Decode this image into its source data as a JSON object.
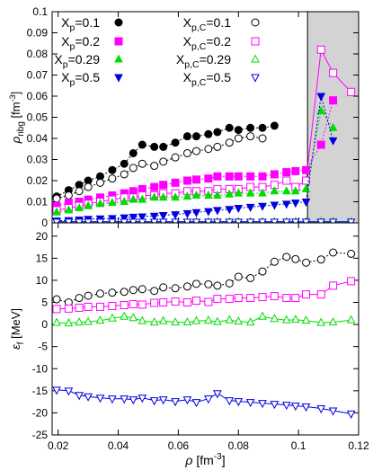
{
  "chart_data": [
    {
      "type": "line",
      "panel": "top",
      "ylabel": "ρ_nbg [fm^-3]",
      "ylim": [
        0,
        0.1
      ],
      "xlim": [
        0.018,
        0.12
      ],
      "yticks": [
        "0",
        "0.01",
        "0.02",
        "0.03",
        "0.04",
        "0.05",
        "0.06",
        "0.07",
        "0.08",
        "0.09",
        "0.1"
      ],
      "yticks_values": [
        0,
        0.01,
        0.02,
        0.03,
        0.04,
        0.05,
        0.06,
        0.07,
        0.08,
        0.09,
        0.1
      ],
      "shaded_region": [
        0.103,
        0.12
      ],
      "legend_placement": "top-left",
      "series": [
        {
          "name": "X_p=0.1",
          "color": "#000000",
          "marker": "circle-filled",
          "dash": true,
          "x": [
            0.0195,
            0.0235,
            0.027,
            0.03,
            0.034,
            0.038,
            0.042,
            0.045,
            0.048,
            0.052,
            0.055,
            0.059,
            0.063,
            0.066,
            0.07,
            0.073,
            0.077,
            0.08,
            0.084,
            0.088,
            0.092
          ],
          "y": [
            0.0125,
            0.0155,
            0.018,
            0.02,
            0.022,
            0.025,
            0.028,
            0.033,
            0.037,
            0.036,
            0.036,
            0.038,
            0.041,
            0.041,
            0.042,
            0.043,
            0.045,
            0.044,
            0.045,
            0.045,
            0.046
          ]
        },
        {
          "name": "X_p,C=0.1",
          "color": "#000000",
          "marker": "circle-open",
          "dash": true,
          "x": [
            0.0195,
            0.0235,
            0.027,
            0.03,
            0.034,
            0.038,
            0.042,
            0.045,
            0.048,
            0.052,
            0.055,
            0.059,
            0.063,
            0.066,
            0.07,
            0.073,
            0.077,
            0.08,
            0.084,
            0.088
          ],
          "y": [
            0.0115,
            0.013,
            0.015,
            0.017,
            0.019,
            0.021,
            0.023,
            0.026,
            0.028,
            0.027,
            0.029,
            0.031,
            0.033,
            0.034,
            0.035,
            0.036,
            0.038,
            0.04,
            0.041,
            0.04
          ]
        },
        {
          "name": "X_p=0.2",
          "color": "#ff00ff",
          "marker": "square-filled",
          "dash": true,
          "x": [
            0.0195,
            0.0235,
            0.027,
            0.03,
            0.034,
            0.038,
            0.042,
            0.045,
            0.048,
            0.052,
            0.055,
            0.059,
            0.063,
            0.066,
            0.07,
            0.073,
            0.077,
            0.08,
            0.084,
            0.088,
            0.092,
            0.096,
            0.099,
            0.1025,
            0.1075,
            0.1115
          ],
          "y": [
            0.008,
            0.0095,
            0.01,
            0.011,
            0.012,
            0.013,
            0.014,
            0.015,
            0.016,
            0.017,
            0.018,
            0.019,
            0.02,
            0.0205,
            0.021,
            0.022,
            0.022,
            0.022,
            0.022,
            0.022,
            0.023,
            0.024,
            0.0245,
            0.025,
            0.037,
            0.058
          ]
        },
        {
          "name": "X_p,C=0.2",
          "color": "#ff00ff",
          "marker": "square-open",
          "dash": false,
          "x": [
            0.0195,
            0.0235,
            0.027,
            0.03,
            0.034,
            0.038,
            0.042,
            0.045,
            0.048,
            0.052,
            0.055,
            0.059,
            0.063,
            0.066,
            0.07,
            0.073,
            0.077,
            0.08,
            0.084,
            0.088,
            0.092,
            0.096,
            0.099,
            0.1025,
            0.1075,
            0.1115,
            0.1175
          ],
          "y": [
            0.006,
            0.007,
            0.008,
            0.009,
            0.01,
            0.011,
            0.012,
            0.012,
            0.013,
            0.013,
            0.014,
            0.014,
            0.015,
            0.015,
            0.015,
            0.016,
            0.016,
            0.016,
            0.017,
            0.017,
            0.018,
            0.02,
            0.017,
            0.02,
            0.082,
            0.071,
            0.062
          ]
        },
        {
          "name": "X_p=0.29",
          "color": "#00dd00",
          "marker": "triangle-up-filled",
          "dash": true,
          "x": [
            0.0195,
            0.0235,
            0.027,
            0.03,
            0.034,
            0.038,
            0.042,
            0.045,
            0.048,
            0.052,
            0.055,
            0.059,
            0.063,
            0.066,
            0.07,
            0.073,
            0.077,
            0.08,
            0.084,
            0.088,
            0.092,
            0.096,
            0.099,
            0.1025,
            0.1075,
            0.1115
          ],
          "y": [
            0.005,
            0.006,
            0.007,
            0.008,
            0.009,
            0.0095,
            0.01,
            0.011,
            0.011,
            0.012,
            0.012,
            0.012,
            0.0125,
            0.013,
            0.013,
            0.013,
            0.0135,
            0.014,
            0.014,
            0.014,
            0.015,
            0.015,
            0.015,
            0.016,
            0.053,
            0.045
          ]
        },
        {
          "name": "X_p,C=0.29",
          "color": "#00dd00",
          "marker": "triangle-up-open",
          "dash": false,
          "x": [
            0.0195,
            0.0235,
            0.027,
            0.03,
            0.034,
            0.038,
            0.042,
            0.045,
            0.048,
            0.052,
            0.055,
            0.059,
            0.063,
            0.066,
            0.07,
            0.073,
            0.077,
            0.08,
            0.084,
            0.088,
            0.092,
            0.096,
            0.099,
            0.1025,
            0.1075,
            0.1115,
            0.1175
          ],
          "y": [
            0.0005,
            0.0005,
            0.0005,
            0.0005,
            0.0005,
            0.0005,
            0.0005,
            0.0005,
            0.0005,
            0.0005,
            0.0005,
            0.0005,
            0.0005,
            0.0005,
            0.0005,
            0.0005,
            0.0005,
            0.0005,
            0.0005,
            0.0005,
            0.0005,
            0.0005,
            0.0005,
            0.0005,
            0.0005,
            0.0005,
            0.0005
          ]
        },
        {
          "name": "X_p=0.5",
          "color": "#0000dd",
          "marker": "triangle-down-filled",
          "dash": true,
          "x": [
            0.0195,
            0.0235,
            0.027,
            0.03,
            0.034,
            0.038,
            0.042,
            0.045,
            0.048,
            0.052,
            0.055,
            0.059,
            0.063,
            0.066,
            0.07,
            0.073,
            0.077,
            0.08,
            0.084,
            0.088,
            0.092,
            0.096,
            0.099,
            0.1025,
            0.1075,
            0.1115
          ],
          "y": [
            0.001,
            0.0012,
            0.0015,
            0.0018,
            0.002,
            0.0022,
            0.0025,
            0.0028,
            0.003,
            0.0033,
            0.0036,
            0.004,
            0.0045,
            0.005,
            0.0055,
            0.006,
            0.0065,
            0.007,
            0.0075,
            0.008,
            0.0085,
            0.009,
            0.0095,
            0.01,
            0.06,
            0.039
          ]
        },
        {
          "name": "X_p,C=0.5",
          "color": "#0000dd",
          "marker": "triangle-down-open",
          "dash": false,
          "x": [
            0.0195,
            0.0235,
            0.027,
            0.03,
            0.034,
            0.038,
            0.042,
            0.045,
            0.048,
            0.052,
            0.055,
            0.059,
            0.063,
            0.066,
            0.07,
            0.073,
            0.077,
            0.08,
            0.084,
            0.088,
            0.092,
            0.096,
            0.099,
            0.1025,
            0.1075,
            0.1115,
            0.1175
          ],
          "y": [
            0.0005,
            0.0005,
            0.0005,
            0.0005,
            0.0005,
            0.0005,
            0.0005,
            0.0005,
            0.0005,
            0.0005,
            0.0005,
            0.0005,
            0.0005,
            0.0005,
            0.0005,
            0.0005,
            0.0005,
            0.0005,
            0.0005,
            0.0005,
            0.0005,
            0.0005,
            0.0005,
            0.0005,
            0.0005,
            0.0005,
            0.0005
          ]
        }
      ]
    },
    {
      "type": "line",
      "panel": "bottom",
      "ylabel": "ε_f [MeV]",
      "xlabel": "ρ [fm^-3]",
      "ylim": [
        -25,
        23
      ],
      "xlim": [
        0.018,
        0.12
      ],
      "yticks": [
        "-25",
        "-20",
        "-15",
        "-10",
        "-5",
        "0",
        "5",
        "10",
        "15",
        "20"
      ],
      "yticks_values": [
        -25,
        -20,
        -15,
        -10,
        -5,
        0,
        5,
        10,
        15,
        20
      ],
      "xticks": [
        "0.02",
        "0.04",
        "0.06",
        "0.08",
        "0.1",
        "0.12"
      ],
      "xticks_values": [
        0.02,
        0.04,
        0.06,
        0.08,
        0.1,
        0.12
      ],
      "series": [
        {
          "name": "X_p,C=0.1",
          "color": "#000000",
          "marker": "circle-open",
          "dash": true,
          "x": [
            0.0195,
            0.0235,
            0.027,
            0.03,
            0.034,
            0.038,
            0.042,
            0.045,
            0.048,
            0.052,
            0.055,
            0.059,
            0.063,
            0.066,
            0.07,
            0.073,
            0.077,
            0.08,
            0.084,
            0.088,
            0.092,
            0.096,
            0.099,
            0.1025,
            0.1075,
            0.1115,
            0.1175
          ],
          "y": [
            5.7,
            5.0,
            6.0,
            6.5,
            7.0,
            7.2,
            7.4,
            7.8,
            8.0,
            7.6,
            8.4,
            8.2,
            8.6,
            9.2,
            9.1,
            8.8,
            9.3,
            10.8,
            10.5,
            12.0,
            14.2,
            15.3,
            14.8,
            14.0,
            14.7,
            16.3,
            16.0
          ]
        },
        {
          "name": "X_p,C=0.2",
          "color": "#ff00ff",
          "marker": "square-open",
          "dash": false,
          "x": [
            0.0195,
            0.0235,
            0.027,
            0.03,
            0.034,
            0.038,
            0.042,
            0.045,
            0.048,
            0.052,
            0.055,
            0.059,
            0.063,
            0.066,
            0.07,
            0.073,
            0.077,
            0.08,
            0.084,
            0.088,
            0.092,
            0.096,
            0.099,
            0.1025,
            0.1075,
            0.1115,
            0.1175
          ],
          "y": [
            3.5,
            3.6,
            3.8,
            4.0,
            4.0,
            4.2,
            4.4,
            4.6,
            4.5,
            4.9,
            5.0,
            5.2,
            5.0,
            5.4,
            5.1,
            5.8,
            5.8,
            6.0,
            6.0,
            6.2,
            6.4,
            6.0,
            6.0,
            6.8,
            6.8,
            8.8,
            9.8
          ]
        },
        {
          "name": "X_p,C=0.29",
          "color": "#00dd00",
          "marker": "triangle-up-open",
          "dash": false,
          "x": [
            0.0195,
            0.0235,
            0.027,
            0.03,
            0.034,
            0.038,
            0.042,
            0.045,
            0.048,
            0.052,
            0.055,
            0.059,
            0.063,
            0.066,
            0.07,
            0.073,
            0.077,
            0.08,
            0.084,
            0.088,
            0.092,
            0.096,
            0.099,
            0.1025,
            0.1075,
            0.1115,
            0.1175
          ],
          "y": [
            0.4,
            0.3,
            0.5,
            0.6,
            0.9,
            1.4,
            1.8,
            1.5,
            0.8,
            0.5,
            0.8,
            0.5,
            0.5,
            0.8,
            0.9,
            0.6,
            1.0,
            0.7,
            0.5,
            1.8,
            1.3,
            1.0,
            1.1,
            0.9,
            0.4,
            0.5,
            1.0
          ]
        },
        {
          "name": "X_p,C=0.5",
          "color": "#0000dd",
          "marker": "triangle-down-open",
          "dash": false,
          "x": [
            0.0195,
            0.0235,
            0.027,
            0.03,
            0.034,
            0.038,
            0.042,
            0.045,
            0.048,
            0.052,
            0.055,
            0.059,
            0.063,
            0.066,
            0.07,
            0.073,
            0.077,
            0.08,
            0.084,
            0.088,
            0.092,
            0.096,
            0.099,
            0.1025,
            0.1075,
            0.1115,
            0.1175
          ],
          "y": [
            -14.8,
            -15.0,
            -16.0,
            -16.3,
            -16.6,
            -16.8,
            -16.8,
            -17.0,
            -16.6,
            -17.2,
            -17.0,
            -17.4,
            -17.0,
            -17.6,
            -16.8,
            -15.6,
            -17.2,
            -17.4,
            -17.6,
            -17.8,
            -18.0,
            -18.2,
            -18.4,
            -18.6,
            -19.0,
            -19.5,
            -20.2
          ]
        }
      ]
    }
  ]
}
